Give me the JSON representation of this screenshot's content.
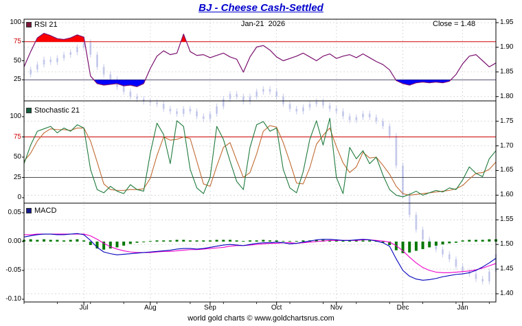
{
  "header": {
    "title": "BJ - Cheese Cash-Settled",
    "date_label": "Jan-21  2026",
    "close_label": "Close = 1.48"
  },
  "footer": {
    "credit": "world gold charts © www.goldchartsrus.com"
  },
  "colors": {
    "title": "#0000cc",
    "grid": "#cccccc",
    "candle": "#98a0dc",
    "rsi_line": "#7a0f6e",
    "overbought_fill": "#ff0000",
    "oversold_fill": "#0000ff",
    "threshold_red": "#cc0000",
    "threshold_black": "#111111",
    "stoch_k": "#1e7a3c",
    "stoch_d": "#c06a32",
    "macd_line": "#0000bb",
    "macd_signal": "#ee00cc",
    "macd_hist": "#007700"
  },
  "chart_data": {
    "type": "line",
    "description": "Three stacked indicator panels (RSI 21, Stochastic 21, MACD) with faint price candlesticks overlaid against right-hand price axis 1.40-1.95",
    "x_months": [
      "Jul",
      "Aug",
      "Sep",
      "Oct",
      "Nov",
      "Dec",
      "Jan"
    ],
    "month_index": [
      9,
      19,
      28,
      38,
      47,
      57,
      66
    ],
    "right_axis": {
      "min": 1.4,
      "max": 1.95,
      "step": 0.05,
      "ticks": [
        1.95,
        1.9,
        1.85,
        1.8,
        1.75,
        1.7,
        1.65,
        1.6,
        1.55,
        1.5,
        1.45,
        1.4
      ]
    },
    "panels": [
      {
        "id": "rsi",
        "label": "RSI 21",
        "swatch_color": "#7c1538",
        "ylim": [
          0,
          100
        ],
        "yticks": [
          100,
          75,
          50,
          25
        ],
        "overbought": 75,
        "oversold": 25,
        "series": {
          "rsi": [
            42,
            62,
            80,
            86,
            83,
            79,
            78,
            80,
            84,
            81,
            30,
            20,
            18,
            19,
            20,
            17,
            18,
            16,
            20,
            40,
            56,
            63,
            58,
            60,
            85,
            62,
            57,
            58,
            54,
            57,
            60,
            55,
            52,
            35,
            55,
            68,
            70,
            64,
            55,
            50,
            53,
            56,
            60,
            55,
            50,
            56,
            59,
            53,
            56,
            58,
            54,
            59,
            54,
            49,
            45,
            38,
            24,
            20,
            18,
            21,
            22,
            21,
            22,
            21,
            23,
            32,
            46,
            56,
            58,
            50,
            42,
            47
          ]
        }
      },
      {
        "id": "stochastic",
        "label": "Stochastic 21",
        "swatch_color": "#145c3c",
        "ylim": [
          0,
          100
        ],
        "yticks": [
          100,
          75,
          50,
          25,
          0
        ],
        "overbought": 75,
        "oversold": 25,
        "series": {
          "k": [
            42,
            65,
            82,
            85,
            88,
            80,
            86,
            82,
            90,
            86,
            35,
            10,
            6,
            14,
            8,
            5,
            16,
            10,
            8,
            55,
            92,
            78,
            42,
            95,
            88,
            35,
            12,
            5,
            25,
            88,
            72,
            45,
            20,
            10,
            62,
            90,
            94,
            82,
            86,
            35,
            12,
            6,
            32,
            72,
            95,
            65,
            98,
            25,
            5,
            62,
            48,
            58,
            42,
            50,
            28,
            10,
            3,
            1,
            4,
            8,
            3,
            6,
            9,
            7,
            12,
            10,
            22,
            38,
            30,
            26,
            48,
            58
          ],
          "d": [
            45,
            55,
            70,
            80,
            85,
            84,
            84,
            83,
            86,
            86,
            70,
            44,
            17,
            10,
            9,
            9,
            10,
            10,
            11,
            24,
            52,
            75,
            71,
            72,
            75,
            73,
            45,
            17,
            14,
            39,
            62,
            68,
            46,
            25,
            31,
            54,
            82,
            89,
            87,
            68,
            44,
            18,
            17,
            37,
            66,
            77,
            86,
            63,
            43,
            31,
            38,
            56,
            49,
            50,
            40,
            29,
            14,
            5,
            3,
            4,
            5,
            6,
            7,
            8,
            9,
            11,
            15,
            23,
            30,
            31,
            35,
            44
          ]
        }
      },
      {
        "id": "macd",
        "label": "MACD",
        "swatch_color": "#141a8c",
        "ylim": [
          -0.1,
          0.05
        ],
        "yticks": [
          0.05,
          0.0,
          -0.05,
          -0.1
        ],
        "series": {
          "macd": [
            0.008,
            0.01,
            0.012,
            0.013,
            0.013,
            0.012,
            0.012,
            0.013,
            0.014,
            0.012,
            0.002,
            -0.01,
            -0.018,
            -0.021,
            -0.023,
            -0.022,
            -0.021,
            -0.02,
            -0.019,
            -0.018,
            -0.017,
            -0.016,
            -0.015,
            -0.013,
            -0.012,
            -0.012,
            -0.013,
            -0.012,
            -0.01,
            -0.008,
            -0.006,
            -0.005,
            -0.006,
            -0.007,
            -0.005,
            -0.003,
            -0.002,
            -0.002,
            -0.001,
            -0.002,
            -0.004,
            -0.003,
            -0.001,
            0.001,
            0.003,
            0.004,
            0.004,
            0.003,
            0.002,
            0.002,
            0.003,
            0.004,
            0.003,
            0.001,
            -0.002,
            -0.008,
            -0.03,
            -0.05,
            -0.06,
            -0.065,
            -0.067,
            -0.066,
            -0.064,
            -0.061,
            -0.059,
            -0.057,
            -0.056,
            -0.054,
            -0.05,
            -0.044,
            -0.037,
            -0.029
          ],
          "signal": [
            0.012,
            0.012,
            0.013,
            0.013,
            0.013,
            0.013,
            0.013,
            0.013,
            0.013,
            0.013,
            0.01,
            0.004,
            -0.003,
            -0.009,
            -0.013,
            -0.016,
            -0.018,
            -0.019,
            -0.019,
            -0.019,
            -0.018,
            -0.017,
            -0.017,
            -0.016,
            -0.015,
            -0.014,
            -0.014,
            -0.013,
            -0.012,
            -0.011,
            -0.01,
            -0.008,
            -0.007,
            -0.007,
            -0.006,
            -0.005,
            -0.004,
            -0.003,
            -0.003,
            -0.002,
            -0.002,
            -0.003,
            -0.002,
            -0.001,
            0.0,
            0.001,
            0.002,
            0.002,
            0.002,
            0.002,
            0.002,
            0.003,
            0.003,
            0.002,
            0.001,
            -0.001,
            -0.007,
            -0.016,
            -0.027,
            -0.037,
            -0.045,
            -0.05,
            -0.053,
            -0.054,
            -0.054,
            -0.053,
            -0.052,
            -0.051,
            -0.049,
            -0.046,
            -0.042,
            -0.038
          ],
          "hist": [
            0.003,
            0.004,
            0.003,
            0.004,
            0.003,
            0.003,
            0.002,
            0.003,
            0.004,
            0.002,
            -0.006,
            -0.012,
            -0.014,
            -0.012,
            -0.01,
            -0.007,
            -0.004,
            -0.002,
            -0.001,
            0.001,
            0.002,
            0.002,
            0.002,
            0.003,
            0.003,
            0.002,
            0.002,
            0.002,
            0.002,
            0.003,
            0.003,
            0.003,
            0.002,
            0.001,
            0.002,
            0.002,
            0.003,
            0.002,
            0.002,
            0.001,
            0.001,
            0.001,
            0.002,
            0.002,
            0.003,
            0.003,
            0.002,
            0.002,
            0.002,
            0.002,
            0.002,
            0.002,
            0.002,
            0.001,
            -0.002,
            -0.006,
            -0.015,
            -0.02,
            -0.019,
            -0.016,
            -0.013,
            -0.01,
            -0.007,
            -0.005,
            -0.003,
            -0.002,
            0.002,
            0.003,
            0.003,
            0.003,
            0.004,
            0.004
          ]
        }
      }
    ],
    "price_close": [
      1.845,
      1.855,
      1.865,
      1.875,
      1.87,
      1.878,
      1.885,
      1.89,
      1.9,
      1.91,
      1.885,
      1.86,
      1.845,
      1.835,
      1.82,
      1.81,
      1.8,
      1.795,
      1.79,
      1.788,
      1.785,
      1.775,
      1.77,
      1.765,
      1.775,
      1.77,
      1.76,
      1.755,
      1.765,
      1.78,
      1.795,
      1.805,
      1.8,
      1.79,
      1.8,
      1.81,
      1.815,
      1.81,
      1.8,
      1.785,
      1.775,
      1.77,
      1.778,
      1.785,
      1.79,
      1.782,
      1.775,
      1.77,
      1.76,
      1.752,
      1.758,
      1.765,
      1.758,
      1.75,
      1.74,
      1.72,
      1.66,
      1.6,
      1.56,
      1.53,
      1.51,
      1.5,
      1.49,
      1.48,
      1.47,
      1.455,
      1.445,
      1.44,
      1.43,
      1.425,
      1.445,
      1.48
    ]
  }
}
